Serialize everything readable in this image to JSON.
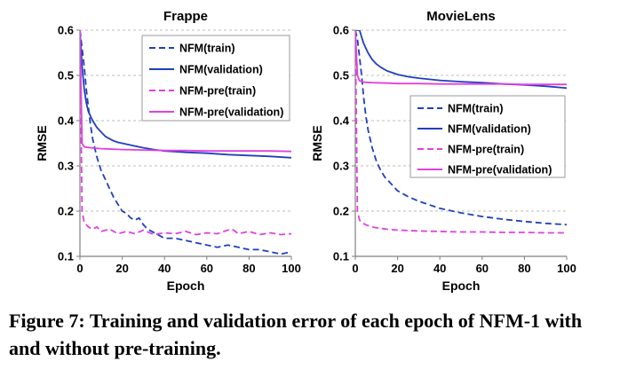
{
  "caption": "Figure 7: Training and validation error of each epoch of NFM-1 with and without pre-training.",
  "colors": {
    "nfm": "#1f3fbf",
    "nfm_pre": "#e040e0"
  },
  "chart_data": [
    {
      "type": "line",
      "title": "Frappe",
      "xlabel": "Epoch",
      "ylabel": "RMSE",
      "xlim": [
        0,
        100
      ],
      "ylim": [
        0.1,
        0.6
      ],
      "xticks": [
        0,
        20,
        40,
        60,
        80,
        100
      ],
      "yticks": [
        0.1,
        0.2,
        0.3,
        0.4,
        0.5,
        0.6
      ],
      "grid": true,
      "legend": "top-right",
      "series": [
        {
          "name": "NFM(train)",
          "style": "dashed",
          "color": "nfm",
          "x": [
            0,
            1,
            2,
            3,
            4,
            5,
            6,
            8,
            10,
            12,
            14,
            16,
            18,
            20,
            22,
            24,
            26,
            28,
            30,
            32,
            34,
            36,
            38,
            40,
            45,
            50,
            55,
            60,
            65,
            70,
            75,
            80,
            85,
            90,
            95,
            100
          ],
          "y": [
            0.6,
            0.56,
            0.52,
            0.47,
            0.43,
            0.39,
            0.36,
            0.32,
            0.29,
            0.27,
            0.25,
            0.23,
            0.215,
            0.2,
            0.195,
            0.185,
            0.18,
            0.185,
            0.17,
            0.16,
            0.155,
            0.15,
            0.145,
            0.14,
            0.14,
            0.135,
            0.13,
            0.125,
            0.12,
            0.125,
            0.12,
            0.115,
            0.115,
            0.11,
            0.105,
            0.11
          ]
        },
        {
          "name": "NFM(validation)",
          "style": "solid",
          "color": "nfm",
          "x": [
            0,
            1,
            2,
            3,
            4,
            5,
            6,
            8,
            10,
            12,
            14,
            16,
            18,
            20,
            25,
            30,
            35,
            40,
            50,
            60,
            70,
            80,
            90,
            100
          ],
          "y": [
            0.6,
            0.52,
            0.47,
            0.44,
            0.42,
            0.41,
            0.4,
            0.385,
            0.375,
            0.365,
            0.36,
            0.355,
            0.352,
            0.35,
            0.345,
            0.34,
            0.336,
            0.333,
            0.33,
            0.328,
            0.325,
            0.323,
            0.321,
            0.318
          ]
        },
        {
          "name": "NFM-pre(train)",
          "style": "dashed",
          "color": "nfm_pre",
          "x": [
            0,
            1,
            2,
            4,
            6,
            8,
            10,
            14,
            18,
            22,
            26,
            30,
            35,
            40,
            45,
            50,
            55,
            60,
            65,
            70,
            72,
            75,
            80,
            85,
            90,
            95,
            100
          ],
          "y": [
            0.6,
            0.2,
            0.175,
            0.165,
            0.16,
            0.165,
            0.155,
            0.16,
            0.15,
            0.155,
            0.15,
            0.158,
            0.148,
            0.152,
            0.15,
            0.155,
            0.148,
            0.152,
            0.15,
            0.158,
            0.16,
            0.15,
            0.155,
            0.148,
            0.152,
            0.148,
            0.15
          ]
        },
        {
          "name": "NFM-pre(validation)",
          "style": "solid",
          "color": "nfm_pre",
          "x": [
            0,
            1,
            2,
            5,
            10,
            20,
            30,
            40,
            50,
            60,
            70,
            80,
            90,
            100
          ],
          "y": [
            0.6,
            0.35,
            0.342,
            0.34,
            0.338,
            0.336,
            0.335,
            0.334,
            0.334,
            0.333,
            0.333,
            0.333,
            0.333,
            0.332
          ]
        }
      ]
    },
    {
      "type": "line",
      "title": "MovieLens",
      "xlabel": "Epoch",
      "ylabel": "RMSE",
      "xlim": [
        0,
        100
      ],
      "ylim": [
        0.1,
        0.6
      ],
      "xticks": [
        0,
        20,
        40,
        60,
        80,
        100
      ],
      "yticks": [
        0.1,
        0.2,
        0.3,
        0.4,
        0.5,
        0.6
      ],
      "grid": true,
      "legend": "center-right",
      "series": [
        {
          "name": "NFM(train)",
          "style": "dashed",
          "color": "nfm",
          "x": [
            0,
            1,
            2,
            3,
            4,
            5,
            6,
            8,
            10,
            12,
            14,
            16,
            18,
            20,
            25,
            30,
            35,
            40,
            50,
            60,
            70,
            80,
            90,
            100
          ],
          "y": [
            0.6,
            0.58,
            0.54,
            0.5,
            0.45,
            0.41,
            0.38,
            0.34,
            0.31,
            0.29,
            0.275,
            0.265,
            0.255,
            0.245,
            0.232,
            0.222,
            0.214,
            0.206,
            0.196,
            0.188,
            0.182,
            0.177,
            0.173,
            0.17
          ]
        },
        {
          "name": "NFM(validation)",
          "style": "solid",
          "color": "nfm",
          "x": [
            0,
            2,
            3,
            4,
            5,
            6,
            8,
            10,
            12,
            15,
            20,
            25,
            30,
            40,
            50,
            60,
            70,
            80,
            90,
            100
          ],
          "y": [
            0.6,
            0.6,
            0.585,
            0.57,
            0.56,
            0.55,
            0.535,
            0.525,
            0.518,
            0.51,
            0.502,
            0.497,
            0.494,
            0.489,
            0.486,
            0.484,
            0.481,
            0.479,
            0.476,
            0.472
          ]
        },
        {
          "name": "NFM-pre(train)",
          "style": "dashed",
          "color": "nfm_pre",
          "x": [
            0,
            1,
            2,
            4,
            6,
            8,
            10,
            15,
            20,
            25,
            30,
            40,
            50,
            60,
            70,
            80,
            90,
            100
          ],
          "y": [
            0.6,
            0.2,
            0.18,
            0.172,
            0.168,
            0.165,
            0.163,
            0.16,
            0.158,
            0.157,
            0.156,
            0.155,
            0.154,
            0.154,
            0.153,
            0.153,
            0.152,
            0.152
          ]
        },
        {
          "name": "NFM-pre(validation)",
          "style": "solid",
          "color": "nfm_pre",
          "x": [
            0,
            1,
            2,
            4,
            8,
            15,
            20,
            30,
            40,
            50,
            60,
            70,
            80,
            90,
            100
          ],
          "y": [
            0.6,
            0.5,
            0.488,
            0.485,
            0.484,
            0.483,
            0.482,
            0.482,
            0.481,
            0.481,
            0.481,
            0.481,
            0.48,
            0.48,
            0.48
          ]
        }
      ]
    }
  ]
}
